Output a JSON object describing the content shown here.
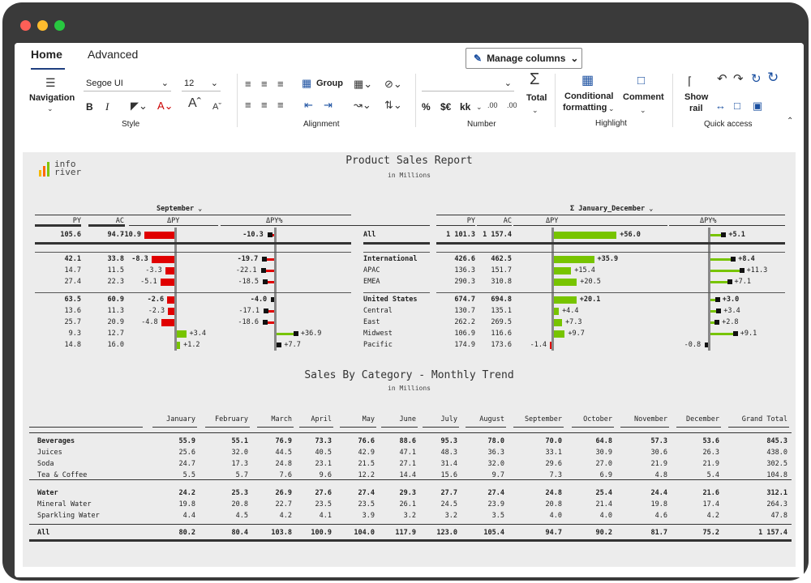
{
  "window": {
    "dot_colors": [
      "#ff5f57",
      "#febc2e",
      "#28c840"
    ]
  },
  "ribbon": {
    "tabs": [
      "Home",
      "Advanced"
    ],
    "manage_columns": "Manage columns",
    "navigation": "Navigation",
    "font_name": "Segoe UI",
    "font_size": "12",
    "bold": "B",
    "italic": "I",
    "style_label": "Style",
    "group": "Group",
    "alignment_label": "Alignment",
    "number_label": "Number",
    "number_format_buttons": [
      "%",
      "$€",
      "kk"
    ],
    "total": "Total",
    "conditional_formatting": [
      "Conditional",
      "formatting"
    ],
    "comment": "Comment",
    "highlight_label": "Highlight",
    "show_rail": [
      "Show",
      "rail"
    ],
    "quick_access_label": "Quick access"
  },
  "logo": {
    "line1": "info",
    "line2": "river",
    "bar_colors": [
      "#f5b800",
      "#ff6a00",
      "#7fc400"
    ]
  },
  "report1": {
    "title": "Product Sales Report",
    "subtitle": "in Millions",
    "left_header": "September",
    "right_header": "Σ January_December",
    "col_py": "PY",
    "col_ac": "AC",
    "col_dpy": "ΔPY",
    "col_dpyp": "ΔPY%",
    "rows": [
      {
        "name": "All",
        "bold": true,
        "py": "105.6",
        "ac": "94.7",
        "dpy": "-10.9",
        "dpyp": "-10.3",
        "ypy": "1 101.3",
        "yac": "1 157.4",
        "ydpy": "+56.0",
        "ydpyp": "+5.1"
      },
      {
        "name": "International",
        "bold": true,
        "py": "42.1",
        "ac": "33.8",
        "dpy": "-8.3",
        "dpyp": "-19.7",
        "ypy": "426.6",
        "yac": "462.5",
        "ydpy": "+35.9",
        "ydpyp": "+8.4"
      },
      {
        "name": "APAC",
        "bold": false,
        "py": "14.7",
        "ac": "11.5",
        "dpy": "-3.3",
        "dpyp": "-22.1",
        "ypy": "136.3",
        "yac": "151.7",
        "ydpy": "+15.4",
        "ydpyp": "+11.3"
      },
      {
        "name": "EMEA",
        "bold": false,
        "py": "27.4",
        "ac": "22.3",
        "dpy": "-5.1",
        "dpyp": "-18.5",
        "ypy": "290.3",
        "yac": "310.8",
        "ydpy": "+20.5",
        "ydpyp": "+7.1"
      },
      {
        "name": "United States",
        "bold": true,
        "py": "63.5",
        "ac": "60.9",
        "dpy": "-2.6",
        "dpyp": "-4.0",
        "ypy": "674.7",
        "yac": "694.8",
        "ydpy": "+20.1",
        "ydpyp": "+3.0"
      },
      {
        "name": "Central",
        "bold": false,
        "py": "13.6",
        "ac": "11.3",
        "dpy": "-2.3",
        "dpyp": "-17.1",
        "ypy": "130.7",
        "yac": "135.1",
        "ydpy": "+4.4",
        "ydpyp": "+3.4"
      },
      {
        "name": "East",
        "bold": false,
        "py": "25.7",
        "ac": "20.9",
        "dpy": "-4.8",
        "dpyp": "-18.6",
        "ypy": "262.2",
        "yac": "269.5",
        "ydpy": "+7.3",
        "ydpyp": "+2.8"
      },
      {
        "name": "Midwest",
        "bold": false,
        "py": "9.3",
        "ac": "12.7",
        "dpy": "+3.4",
        "dpyp": "+36.9",
        "ypy": "106.9",
        "yac": "116.6",
        "ydpy": "+9.7",
        "ydpyp": "+9.1"
      },
      {
        "name": "Pacific",
        "bold": false,
        "py": "14.8",
        "ac": "16.0",
        "dpy": "+1.2",
        "dpyp": "+7.7",
        "ypy": "174.9",
        "yac": "173.6",
        "ydpy": "-1.4",
        "ydpyp": "-0.8"
      }
    ]
  },
  "report2": {
    "title": "Sales By Category - Monthly Trend",
    "subtitle": "in Millions",
    "columns": [
      "January",
      "February",
      "March",
      "April",
      "May",
      "June",
      "July",
      "August",
      "September",
      "October",
      "November",
      "December",
      "Grand Total"
    ],
    "rows": [
      {
        "name": "Beverages",
        "bold": true,
        "values": [
          "55.9",
          "55.1",
          "76.9",
          "73.3",
          "76.6",
          "88.6",
          "95.3",
          "78.0",
          "70.0",
          "64.8",
          "57.3",
          "53.6",
          "845.3"
        ]
      },
      {
        "name": "Juices",
        "bold": false,
        "values": [
          "25.6",
          "32.0",
          "44.5",
          "40.5",
          "42.9",
          "47.1",
          "48.3",
          "36.3",
          "33.1",
          "30.9",
          "30.6",
          "26.3",
          "438.0"
        ]
      },
      {
        "name": "Soda",
        "bold": false,
        "values": [
          "24.7",
          "17.3",
          "24.8",
          "23.1",
          "21.5",
          "27.1",
          "31.4",
          "32.0",
          "29.6",
          "27.0",
          "21.9",
          "21.9",
          "302.5"
        ]
      },
      {
        "name": "Tea & Coffee",
        "bold": false,
        "values": [
          "5.5",
          "5.7",
          "7.6",
          "9.6",
          "12.2",
          "14.4",
          "15.6",
          "9.7",
          "7.3",
          "6.9",
          "4.8",
          "5.4",
          "104.8"
        ]
      },
      {
        "name": "Water",
        "bold": true,
        "values": [
          "24.2",
          "25.3",
          "26.9",
          "27.6",
          "27.4",
          "29.3",
          "27.7",
          "27.4",
          "24.8",
          "25.4",
          "24.4",
          "21.6",
          "312.1"
        ]
      },
      {
        "name": "Mineral Water",
        "bold": false,
        "values": [
          "19.8",
          "20.8",
          "22.7",
          "23.5",
          "23.5",
          "26.1",
          "24.5",
          "23.9",
          "20.8",
          "21.4",
          "19.8",
          "17.4",
          "264.3"
        ]
      },
      {
        "name": "Sparkling Water",
        "bold": false,
        "values": [
          "4.4",
          "4.5",
          "4.2",
          "4.1",
          "3.9",
          "3.2",
          "3.2",
          "3.5",
          "4.0",
          "4.0",
          "4.6",
          "4.2",
          "47.8"
        ]
      },
      {
        "name": "All",
        "bold": true,
        "values": [
          "80.2",
          "80.4",
          "103.8",
          "100.9",
          "104.0",
          "117.9",
          "123.0",
          "105.4",
          "94.7",
          "90.2",
          "81.7",
          "75.2",
          "1 157.4"
        ]
      }
    ]
  },
  "colors": {
    "negative": "#e00000",
    "positive": "#77c400",
    "accent_blue": "#1f3f7f"
  }
}
